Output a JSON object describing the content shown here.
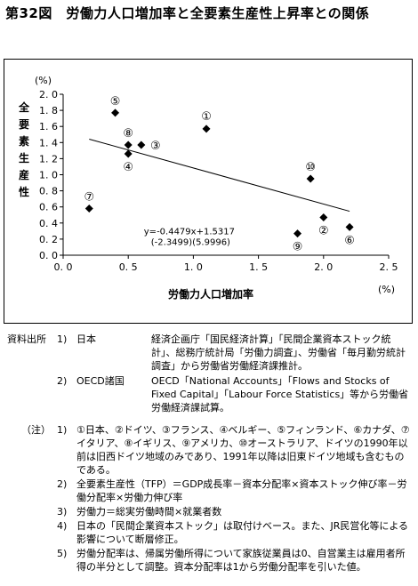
{
  "title": "第32図　労働力人口増加率と全要素生産性上昇率との関係",
  "chart_data": {
    "type": "scatter",
    "xlabel": "労働力人口増加率",
    "ylabel": "全要素生産性",
    "x_unit": "(%)",
    "y_unit": "(%)",
    "xlim": [
      0,
      2.5
    ],
    "ylim": [
      0,
      2.0
    ],
    "x_ticks": [
      "0. 0",
      "0. 5",
      "1. 0",
      "1. 5",
      "2. 0",
      "2. 5"
    ],
    "y_ticks": [
      "0. 0",
      "0. 2",
      "0. 4",
      "0. 6",
      "0. 8",
      "1. 0",
      "1. 2",
      "1. 4",
      "1. 6",
      "1. 8",
      "2. 0"
    ],
    "points": [
      {
        "label": "①",
        "x": 1.1,
        "y": 1.57
      },
      {
        "label": "②",
        "x": 2.0,
        "y": 0.47
      },
      {
        "label": "③",
        "x": 0.6,
        "y": 1.37
      },
      {
        "label": "④",
        "x": 0.5,
        "y": 1.26
      },
      {
        "label": "⑤",
        "x": 0.4,
        "y": 1.77
      },
      {
        "label": "⑥",
        "x": 2.2,
        "y": 0.35
      },
      {
        "label": "⑦",
        "x": 0.2,
        "y": 0.58
      },
      {
        "label": "⑧",
        "x": 0.5,
        "y": 1.37
      },
      {
        "label": "⑨",
        "x": 1.8,
        "y": 0.27
      },
      {
        "label": "⑩",
        "x": 1.9,
        "y": 0.95
      }
    ],
    "trendline": {
      "slope": -0.4479,
      "intercept": 1.5317,
      "x_range": [
        0.2,
        2.2
      ]
    },
    "equation": "y=-0.4479x+1.5317",
    "t_values": "(-2.3499)(5.9996)"
  },
  "source": {
    "label": "資料出所",
    "items": [
      {
        "num": "1)",
        "name": "日本",
        "text": "経済企画庁「国民経済計算」「民間企業資本ストック統計」、総務庁統計局「労働力調査」、労働省「毎月勤労統計調査」から労働省労働経済課推計。"
      },
      {
        "num": "2)",
        "name": "OECD諸国",
        "text": "OECD「National Accounts」「Flows and Stocks of Fixed Capital」「Labour Force Statistics」等から労働省労働経済課試算。"
      }
    ]
  },
  "notes": {
    "label": "（注）",
    "items": [
      {
        "num": "1)",
        "text": "①日本、②ドイツ、③フランス、④ベルギー、⑤フィンランド、⑥カナダ、⑦イタリア、⑧イギリス、⑨アメリカ、⑩オーストラリア、ドイツの1990年以前は旧西ドイツ地域のみであり、1991年以降は旧東ドイツ地域も含むものである。"
      },
      {
        "num": "2)",
        "text": "全要素生産性（TFP）＝GDP成長率－資本分配率×資本ストック伸び率－労働分配率×労働力伸び率"
      },
      {
        "num": "3)",
        "text": "労働力＝総実労働時間×就業者数"
      },
      {
        "num": "4)",
        "text": "日本の「民間企業資本ストック」は取付けベース。また、JR民営化等による影響について断層修正。"
      },
      {
        "num": "5)",
        "text": "労働分配率は、帰属労働所得について家族従業員は0、自営業主は雇用者所得の半分として調整。資本分配率は1から労働分配率を引いた値。"
      }
    ]
  }
}
